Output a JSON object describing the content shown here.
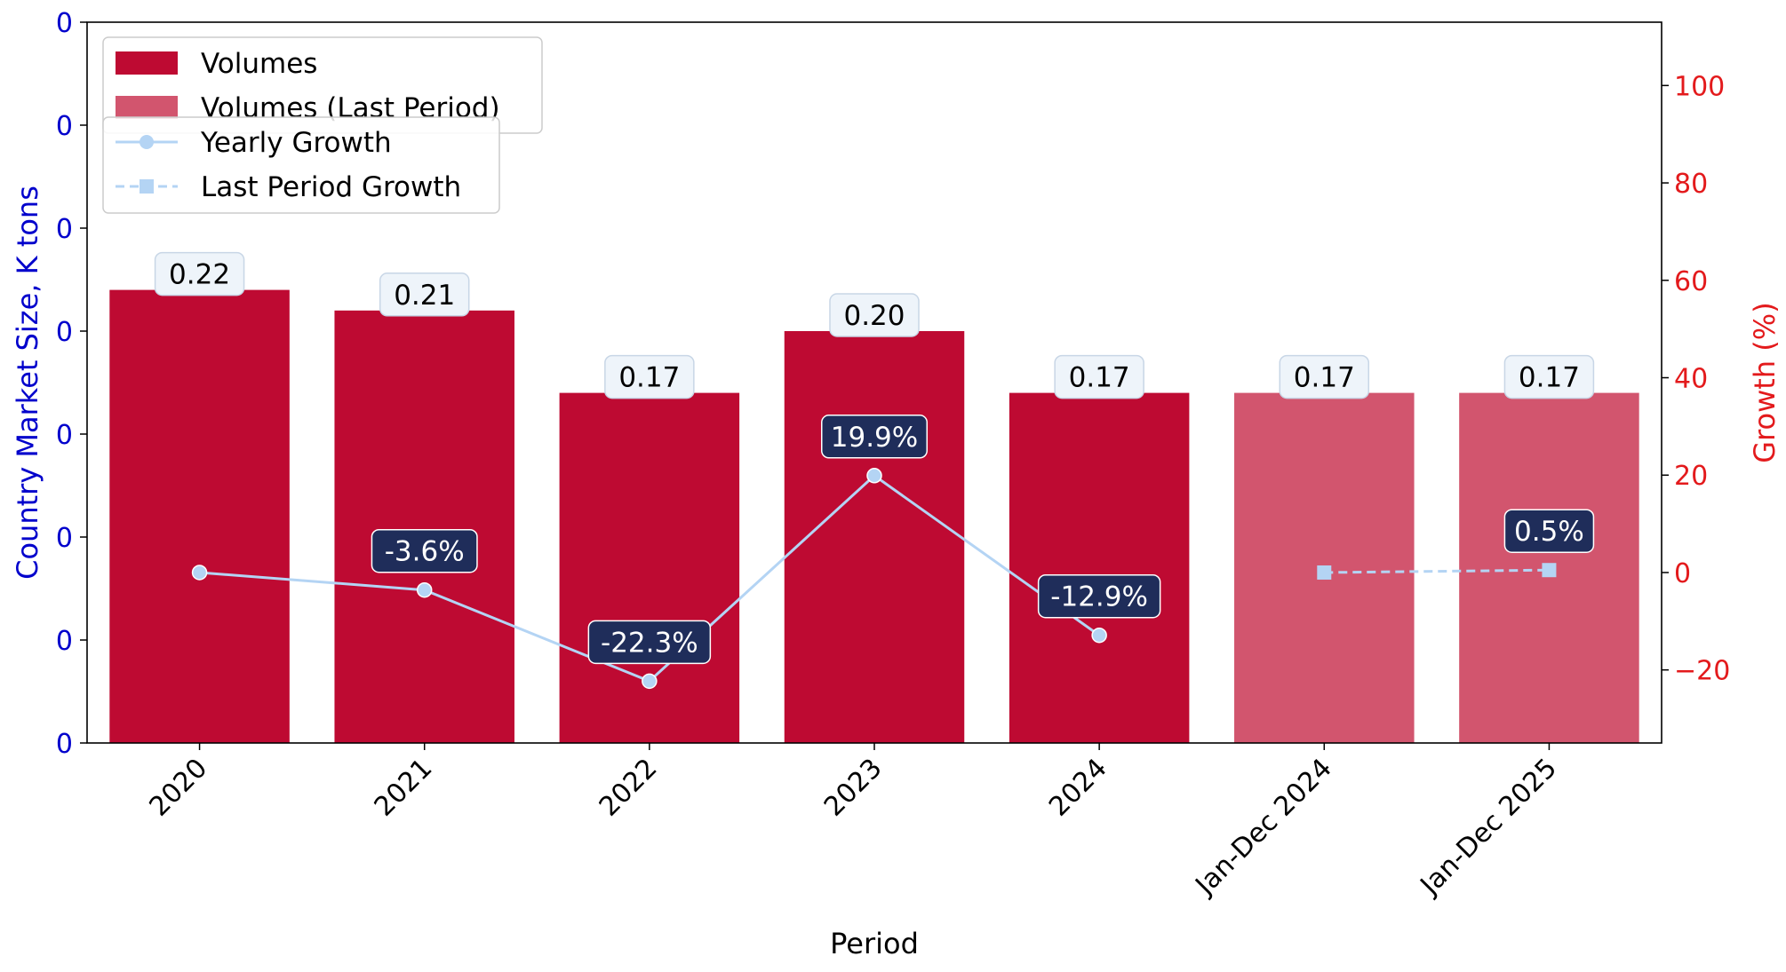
{
  "chart_data": {
    "type": "bar",
    "categories": [
      "2020",
      "2021",
      "2022",
      "2023",
      "2024",
      "Jan-Dec 2024",
      "Jan-Dec 2025"
    ],
    "series": [
      {
        "name": "Volumes",
        "values": [
          0.22,
          0.21,
          0.17,
          0.2,
          0.17,
          null,
          null
        ],
        "labels": [
          "0.22",
          "0.21",
          "0.17",
          "0.20",
          "0.17",
          "",
          ""
        ],
        "color": "#be0a32"
      },
      {
        "name": "Volumes (Last Period)",
        "values": [
          null,
          null,
          null,
          null,
          null,
          0.17,
          0.17
        ],
        "labels": [
          "",
          "",
          "",
          "",
          "",
          "0.17",
          "0.17"
        ],
        "color": "#d2556e"
      },
      {
        "name": "Yearly Growth",
        "type": "line",
        "axis": "right",
        "values": [
          0,
          -3.6,
          -22.3,
          19.9,
          -12.9,
          null,
          null
        ],
        "labels": [
          "",
          "-3.6%",
          "-22.3%",
          "19.9%",
          "-12.9%",
          "",
          ""
        ],
        "color": "#b4d4f4"
      },
      {
        "name": "Last Period Growth",
        "type": "line",
        "style": "dashed",
        "axis": "right",
        "values": [
          null,
          null,
          null,
          null,
          null,
          0,
          0.5
        ],
        "labels": [
          "",
          "",
          "",
          "",
          "",
          "",
          "0.5%"
        ],
        "color": "#b4d4f4"
      }
    ],
    "xlabel": "Period",
    "ylabel": "Country Market Size, K tons",
    "y2label": "Growth (%)",
    "ylim": [
      0,
      0.35
    ],
    "y2lim": [
      -35,
      113
    ],
    "yticks": [
      "0",
      "0",
      "0",
      "0",
      "0",
      "0",
      "0",
      "0"
    ],
    "y2ticks": [
      -20,
      0,
      20,
      40,
      60,
      80,
      100
    ],
    "grid": false,
    "legend_position": "top-left",
    "label_box_color": "#1f2d5a",
    "value_box_color": "#eef4fa"
  }
}
